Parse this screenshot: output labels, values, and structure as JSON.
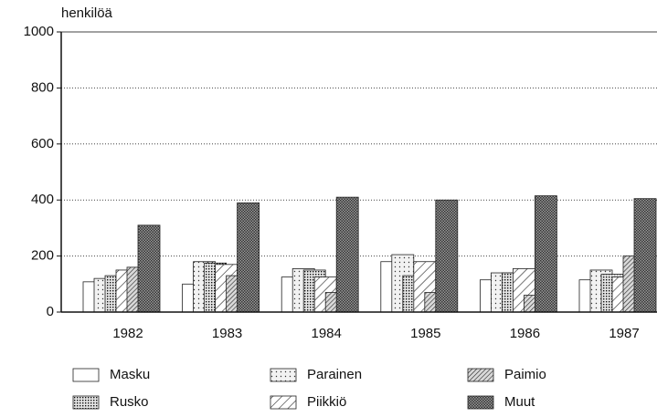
{
  "chart_data": {
    "type": "bar",
    "y_label": "henkilöä",
    "categories": [
      "1982",
      "1983",
      "1984",
      "1985",
      "1986",
      "1987"
    ],
    "series": [
      {
        "name": "Masku",
        "color": "#ffffff",
        "values": [
          108,
          100,
          125,
          180,
          115,
          115
        ]
      },
      {
        "name": "Parainen",
        "color": "#f2f2f2",
        "values": [
          120,
          180,
          155,
          205,
          140,
          150
        ]
      },
      {
        "name": "Rusko",
        "color": "#e6e6e6",
        "values": [
          130,
          175,
          150,
          130,
          140,
          135
        ]
      },
      {
        "name": "Piikkiö",
        "color": "#ffffff",
        "values": [
          150,
          170,
          125,
          180,
          155,
          125
        ]
      },
      {
        "name": "Paimio",
        "color": "#d9d9d9",
        "values": [
          160,
          130,
          70,
          70,
          60,
          200
        ]
      },
      {
        "name": "Muut",
        "color": "#9a9a9a",
        "values": [
          310,
          390,
          410,
          400,
          415,
          405
        ]
      }
    ],
    "ylim": [
      0,
      1000
    ],
    "yticks": [
      0,
      200,
      400,
      600,
      800,
      1000
    ],
    "grid": true
  }
}
